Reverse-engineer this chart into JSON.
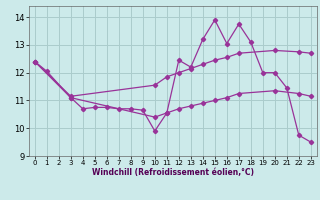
{
  "xlabel": "Windchill (Refroidissement éolien,°C)",
  "background_color": "#cceaea",
  "grid_color": "#aacccc",
  "line_color": "#993399",
  "xlim": [
    -0.5,
    23.5
  ],
  "ylim": [
    9.0,
    14.4
  ],
  "yticks": [
    9,
    10,
    11,
    12,
    13,
    14
  ],
  "xticks": [
    0,
    1,
    2,
    3,
    4,
    5,
    6,
    7,
    8,
    9,
    10,
    11,
    12,
    13,
    14,
    15,
    16,
    17,
    18,
    19,
    20,
    21,
    22,
    23
  ],
  "line1_x": [
    0,
    1,
    3,
    4,
    5,
    6,
    7,
    8,
    9,
    10,
    11,
    12,
    13,
    14,
    15,
    16,
    17,
    18,
    19,
    20,
    21,
    22,
    23
  ],
  "line1_y": [
    12.4,
    12.05,
    11.1,
    10.7,
    10.75,
    10.75,
    10.7,
    10.7,
    10.65,
    9.9,
    10.55,
    12.45,
    12.2,
    13.2,
    13.9,
    13.05,
    13.75,
    13.1,
    12.0,
    12.0,
    11.45,
    9.75,
    9.5
  ],
  "line2_x": [
    0,
    3,
    10,
    11,
    12,
    13,
    14,
    15,
    16,
    17,
    20,
    22,
    23
  ],
  "line2_y": [
    12.4,
    11.15,
    11.55,
    11.85,
    12.0,
    12.15,
    12.3,
    12.45,
    12.55,
    12.7,
    12.8,
    12.75,
    12.7
  ],
  "line3_x": [
    0,
    3,
    10,
    11,
    12,
    13,
    14,
    15,
    16,
    17,
    20,
    22,
    23
  ],
  "line3_y": [
    12.4,
    11.1,
    10.4,
    10.55,
    10.7,
    10.8,
    10.9,
    11.0,
    11.1,
    11.25,
    11.35,
    11.25,
    11.15
  ]
}
